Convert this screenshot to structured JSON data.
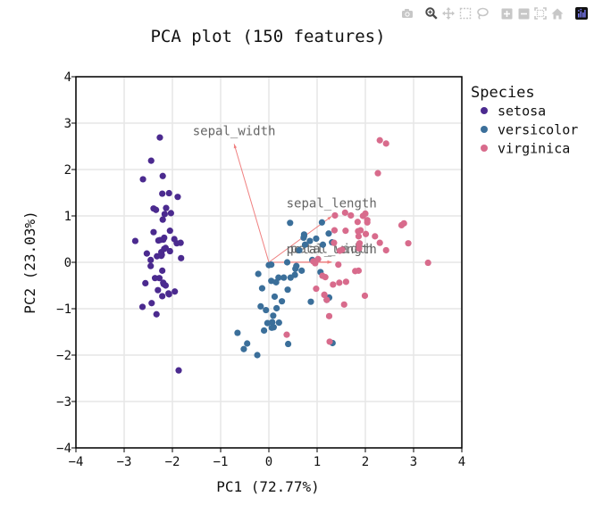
{
  "modebar": {
    "icons": [
      "camera-icon",
      "zoom-icon",
      "pan-icon",
      "box-select-icon",
      "lasso-icon",
      "zoom-in-icon",
      "zoom-out-icon",
      "autoscale-icon",
      "home-icon",
      "plotly-logo-icon"
    ]
  },
  "chart_data": {
    "type": "scatter",
    "title": "PCA plot (150 features)",
    "xlabel": "PC1 (72.77%)",
    "ylabel": "PC2 (23.03%)",
    "xlim": [
      -4,
      4
    ],
    "ylim": [
      -4,
      4
    ],
    "xticks": [
      -4,
      -3,
      -2,
      -1,
      0,
      1,
      2,
      3,
      4
    ],
    "yticks": [
      -4,
      -3,
      -2,
      -1,
      0,
      1,
      2,
      3,
      4
    ],
    "xtick_labels": [
      "−4",
      "−3",
      "−2",
      "−1",
      "0",
      "1",
      "2",
      "3",
      "4"
    ],
    "ytick_labels": [
      "−4",
      "−3",
      "−2",
      "−1",
      "0",
      "1",
      "2",
      "3",
      "4"
    ],
    "grid": true,
    "legend": {
      "title": "Species",
      "placement": "right"
    },
    "series": [
      {
        "name": "setosa",
        "color": "#4b2a8f",
        "points": [
          [
            -2.26,
            0.48
          ],
          [
            -2.08,
            -0.67
          ],
          [
            -2.36,
            -0.34
          ],
          [
            -2.3,
            -0.6
          ],
          [
            -2.39,
            0.65
          ],
          [
            -2.07,
            1.49
          ],
          [
            -2.45,
            0.05
          ],
          [
            -2.23,
            0.22
          ],
          [
            -2.33,
            -1.12
          ],
          [
            -2.18,
            -0.47
          ],
          [
            -2.16,
            1.04
          ],
          [
            -2.32,
            0.13
          ],
          [
            -2.21,
            -0.73
          ],
          [
            -2.62,
            -0.96
          ],
          [
            -2.2,
            1.86
          ],
          [
            -2.26,
            2.69
          ],
          [
            -2.21,
            1.48
          ],
          [
            -2.19,
            0.49
          ],
          [
            -1.89,
            1.41
          ],
          [
            -2.34,
            1.13
          ],
          [
            -1.91,
            0.41
          ],
          [
            -2.2,
            0.92
          ],
          [
            -2.77,
            0.46
          ],
          [
            -1.82,
            0.09
          ],
          [
            -2.23,
            0.14
          ],
          [
            -1.95,
            -0.63
          ],
          [
            -2.05,
            0.24
          ],
          [
            -2.17,
            0.53
          ],
          [
            -2.14,
            0.31
          ],
          [
            -2.27,
            -0.34
          ],
          [
            -2.14,
            -0.5
          ],
          [
            -1.83,
            0.42
          ],
          [
            -2.61,
            1.79
          ],
          [
            -2.44,
            2.19
          ],
          [
            -2.19,
            -0.44
          ],
          [
            -2.21,
            -0.18
          ],
          [
            -2.05,
            0.68
          ],
          [
            -2.53,
            0.19
          ],
          [
            -2.43,
            -0.88
          ],
          [
            -2.17,
            0.29
          ],
          [
            -2.29,
            0.47
          ],
          [
            -1.87,
            -2.33
          ],
          [
            -2.56,
            -0.45
          ],
          [
            -1.96,
            0.5
          ],
          [
            -2.13,
            1.17
          ],
          [
            -2.07,
            -0.69
          ],
          [
            -2.39,
            1.16
          ],
          [
            -2.45,
            -0.08
          ],
          [
            -2.03,
            1.06
          ],
          [
            -2.22,
            0.16
          ]
        ]
      },
      {
        "name": "versicolor",
        "color": "#3b6f9a",
        "points": [
          [
            1.1,
            0.86
          ],
          [
            0.73,
            0.6
          ],
          [
            1.24,
            0.62
          ],
          [
            0.4,
            -1.76
          ],
          [
            1.07,
            -0.21
          ],
          [
            0.39,
            -0.59
          ],
          [
            0.75,
            0.38
          ],
          [
            -0.45,
            -1.75
          ],
          [
            0.9,
            0.05
          ],
          [
            -0.06,
            -1.03
          ],
          [
            -0.24,
            -2.0
          ],
          [
            0.38,
            -0.0
          ],
          [
            0.09,
            -1.15
          ],
          [
            0.54,
            -0.27
          ],
          [
            -0.14,
            -0.56
          ],
          [
            0.72,
            0.53
          ],
          [
            0.31,
            -0.33
          ],
          [
            0.05,
            -0.4
          ],
          [
            1.32,
            -1.74
          ],
          [
            -0.03,
            -1.31
          ],
          [
            0.85,
            0.46
          ],
          [
            0.2,
            -0.33
          ],
          [
            1.2,
            -0.81
          ],
          [
            0.57,
            -0.08
          ],
          [
            0.63,
            0.26
          ],
          [
            0.73,
            0.57
          ],
          [
            1.12,
            0.38
          ],
          [
            1.31,
            0.43
          ],
          [
            0.68,
            -0.18
          ],
          [
            -0.17,
            -0.95
          ],
          [
            0.07,
            -1.29
          ],
          [
            -0.1,
            -1.47
          ],
          [
            0.12,
            -0.74
          ],
          [
            1.25,
            -0.76
          ],
          [
            0.27,
            -0.84
          ],
          [
            0.44,
            0.85
          ],
          [
            0.98,
            0.51
          ],
          [
            0.87,
            -0.85
          ],
          [
            0.05,
            -0.05
          ],
          [
            0.06,
            -1.41
          ],
          [
            0.21,
            -1.3
          ],
          [
            0.55,
            -0.14
          ],
          [
            0.1,
            -1.4
          ],
          [
            -0.52,
            -1.87
          ],
          [
            0.16,
            -0.99
          ],
          [
            -0.0,
            -0.06
          ],
          [
            0.15,
            -0.43
          ],
          [
            0.45,
            -0.33
          ],
          [
            -0.65,
            -1.52
          ],
          [
            -0.22,
            -0.25
          ]
        ]
      },
      {
        "name": "virginica",
        "color": "#d86b8c",
        "points": [
          [
            1.84,
            0.87
          ],
          [
            1.15,
            -0.7
          ],
          [
            2.2,
            0.56
          ],
          [
            1.44,
            -0.05
          ],
          [
            1.87,
            0.3
          ],
          [
            2.75,
            0.8
          ],
          [
            0.37,
            -1.56
          ],
          [
            2.3,
            0.42
          ],
          [
            1.99,
            -0.72
          ],
          [
            2.26,
            1.92
          ],
          [
            1.36,
            0.69
          ],
          [
            1.6,
            -0.42
          ],
          [
            1.88,
            0.41
          ],
          [
            1.25,
            -1.16
          ],
          [
            1.46,
            -0.44
          ],
          [
            1.59,
            0.68
          ],
          [
            1.47,
            0.25
          ],
          [
            2.43,
            2.56
          ],
          [
            3.3,
            -0.01
          ],
          [
            1.26,
            -1.71
          ],
          [
            2.04,
            0.91
          ],
          [
            0.98,
            -0.57
          ],
          [
            2.89,
            0.41
          ],
          [
            1.33,
            -0.48
          ],
          [
            1.7,
            1.01
          ],
          [
            1.95,
            1.0
          ],
          [
            1.17,
            -0.32
          ],
          [
            1.02,
            0.07
          ],
          [
            1.79,
            -0.19
          ],
          [
            1.86,
            0.56
          ],
          [
            2.43,
            0.26
          ],
          [
            2.3,
            2.63
          ],
          [
            1.86,
            -0.18
          ],
          [
            1.11,
            -0.29
          ],
          [
            1.2,
            -0.81
          ],
          [
            2.8,
            0.84
          ],
          [
            1.58,
            1.07
          ],
          [
            1.35,
            0.42
          ],
          [
            0.92,
            0.02
          ],
          [
            1.85,
            0.67
          ],
          [
            2.01,
            0.61
          ],
          [
            1.9,
            0.69
          ],
          [
            1.15,
            -0.7
          ],
          [
            2.04,
            0.86
          ],
          [
            2.0,
            1.05
          ],
          [
            1.87,
            0.38
          ],
          [
            1.56,
            -0.91
          ],
          [
            1.52,
            0.27
          ],
          [
            1.37,
            1.01
          ],
          [
            0.96,
            -0.02
          ]
        ]
      }
    ],
    "loadings": [
      {
        "label": "sepal_length",
        "x": 1.3,
        "y": 0.99
      },
      {
        "label": "sepal_width",
        "x": -0.72,
        "y": 2.55
      },
      {
        "label": "petal_width",
        "x": 1.3,
        "y": 0.01
      },
      {
        "label": "petal_length",
        "x": 1.3,
        "y": 0.0
      }
    ],
    "loading_color": "#f08080"
  }
}
